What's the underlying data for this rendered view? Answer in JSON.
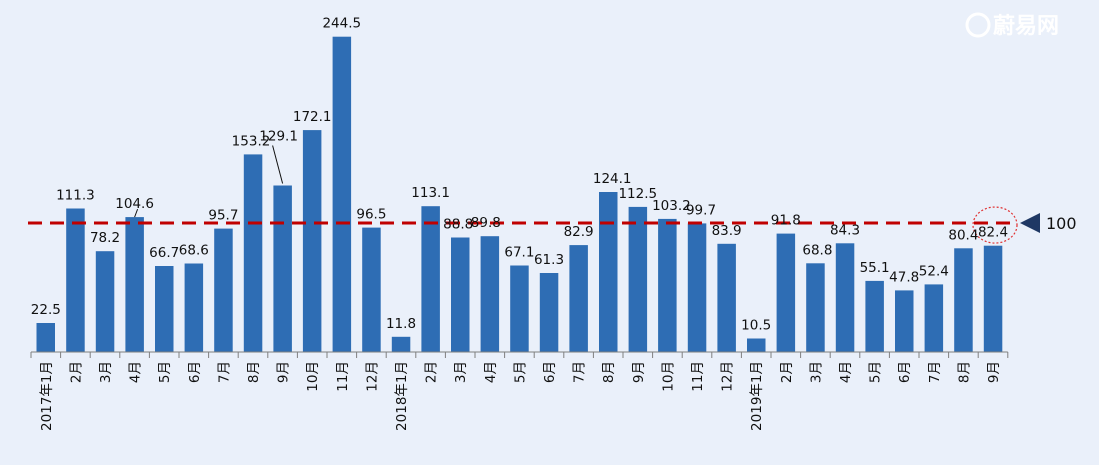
{
  "chart_data": {
    "type": "bar",
    "categories": [
      "2017年1月",
      "2月",
      "3月",
      "4月",
      "5月",
      "6月",
      "7月",
      "8月",
      "9月",
      "10月",
      "11月",
      "12月",
      "2018年1月",
      "2月",
      "3月",
      "4月",
      "5月",
      "6月",
      "7月",
      "8月",
      "9月",
      "10月",
      "11月",
      "12月",
      "2019年1月",
      "2月",
      "3月",
      "4月",
      "5月",
      "6月",
      "7月",
      "8月",
      "9月"
    ],
    "values": [
      22.5,
      111.3,
      78.2,
      104.6,
      66.7,
      68.6,
      95.7,
      153.2,
      129.1,
      172.1,
      244.5,
      96.5,
      11.8,
      113.1,
      88.8,
      89.8,
      67.1,
      61.3,
      82.9,
      124.1,
      112.5,
      103.2,
      99.7,
      83.9,
      10.5,
      91.8,
      68.8,
      84.3,
      55.1,
      47.8,
      52.4,
      80.4,
      82.4
    ],
    "reference_line": {
      "value": 100,
      "label": "100",
      "style": "dashed",
      "color": "#c00000"
    },
    "highlight_index": 32,
    "ylim": [
      0,
      250
    ],
    "title": "",
    "xlabel": "",
    "ylabel": "",
    "colors": {
      "bar": "#2e6db4",
      "background": "#eaf0fa",
      "axis": "#7f7f7f",
      "reference": "#c00000",
      "marker": "#1f3864"
    }
  },
  "watermark": {
    "icon": "e-logo-icon",
    "text": "蔚易网"
  }
}
